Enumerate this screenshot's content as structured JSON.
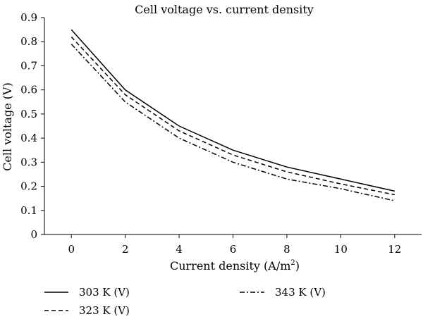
{
  "chart_data": {
    "type": "line",
    "title": "Cell voltage vs. current density",
    "xlabel_main": "Current density (A/m",
    "xlabel_sup": "2",
    "xlabel_end": ")",
    "ylabel": "Cell voltage (V)",
    "x": [
      0,
      2,
      4,
      6,
      8,
      10,
      12
    ],
    "xticks": [
      "0",
      "2",
      "4",
      "6",
      "8",
      "10",
      "12"
    ],
    "yticks": [
      "0",
      "0.1",
      "0.2",
      "0.3",
      "0.4",
      "0.5",
      "0.6",
      "0.7",
      "0.8",
      "0.9"
    ],
    "xlim": [
      -1,
      13
    ],
    "ylim": [
      0,
      0.9
    ],
    "grid": false,
    "legend_position": "bottom",
    "series": [
      {
        "name": "303 K (V)",
        "style": "solid",
        "values": [
          0.85,
          0.6,
          0.45,
          0.35,
          0.28,
          0.23,
          0.18
        ]
      },
      {
        "name": "323 K (V)",
        "style": "dashed",
        "values": [
          0.82,
          0.58,
          0.43,
          0.33,
          0.26,
          0.21,
          0.165
        ]
      },
      {
        "name": "343 K (V)",
        "style": "dashdot",
        "values": [
          0.79,
          0.55,
          0.4,
          0.3,
          0.23,
          0.19,
          0.14
        ]
      }
    ],
    "line_color": "#000000"
  }
}
